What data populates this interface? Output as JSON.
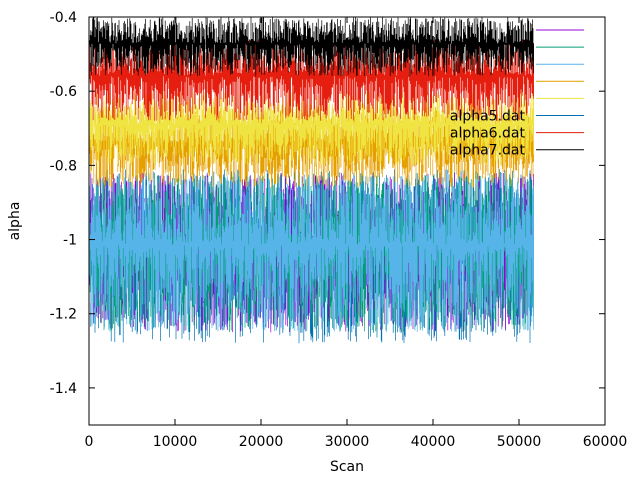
{
  "chart_data": {
    "type": "line",
    "title": "",
    "xlabel": "Scan",
    "ylabel": "alpha",
    "xlim": [
      0,
      60000
    ],
    "ylim": [
      -1.5,
      -0.4
    ],
    "x_ticks": [
      0,
      10000,
      20000,
      30000,
      40000,
      50000,
      60000
    ],
    "y_ticks": [
      -1.4,
      -1.2,
      -1,
      -0.8,
      -0.6,
      -0.4
    ],
    "x_tick_labels": [
      "0",
      "10000",
      "20000",
      "30000",
      "40000",
      "50000",
      "60000"
    ],
    "y_tick_labels": [
      "-1.4",
      "-1.2",
      "-1",
      "-0.8",
      "-0.6",
      "-0.4"
    ],
    "grid": false,
    "legend_position": "top-right",
    "series": [
      {
        "name": "",
        "color": "#9400d3",
        "x_range": [
          0,
          51700
        ],
        "center": -1.0,
        "low": -1.25,
        "high": -0.82,
        "noise_style": "dense"
      },
      {
        "name": "",
        "color": "#009e73",
        "x_range": [
          0,
          51700
        ],
        "center": -1.0,
        "low": -1.25,
        "high": -0.82,
        "noise_style": "dense"
      },
      {
        "name": "",
        "color": "#56b4e9",
        "x_range": [
          0,
          51700
        ],
        "center": -1.0,
        "low": -1.25,
        "high": -0.82,
        "noise_style": "dense"
      },
      {
        "name": "",
        "color": "#e69f00",
        "x_range": [
          0,
          51700
        ],
        "center": -0.76,
        "low": -0.86,
        "high": -0.64,
        "noise_style": "dense"
      },
      {
        "name": "",
        "color": "#f0e442",
        "x_range": [
          0,
          51700
        ],
        "center": -0.71,
        "low": -0.8,
        "high": -0.6,
        "noise_style": "dense"
      },
      {
        "name": "alpha5.dat",
        "color": "#0072b2",
        "x_range": [
          0,
          51700
        ],
        "center": -1.0,
        "low": -1.28,
        "high": -0.81,
        "noise_style": "dense"
      },
      {
        "name": "alpha6.dat",
        "color": "#e51e10",
        "x_range": [
          0,
          51700
        ],
        "center": -0.57,
        "low": -0.68,
        "high": -0.46,
        "noise_style": "dense"
      },
      {
        "name": "alpha7.dat",
        "color": "#000000",
        "x_range": [
          0,
          51700
        ],
        "center": -0.45,
        "low": -0.56,
        "high": -0.4,
        "noise_style": "dense"
      }
    ]
  }
}
